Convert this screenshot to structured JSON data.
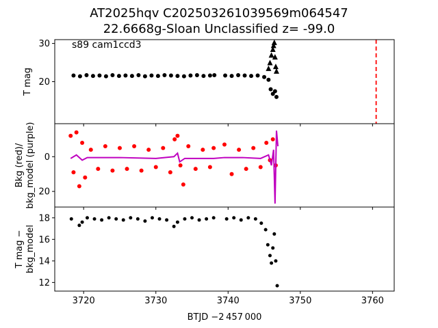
{
  "title": {
    "line1": "AT2025hqv  C202503261039569m064547",
    "line2": "22.6668g-Sloan Unclassified z= -99.0"
  },
  "colors": {
    "bkg": "#ff0000",
    "model": "#bf00bf",
    "points": "#000000",
    "marker": "#ff0000"
  },
  "chart_data": [
    {
      "type": "scatter",
      "panel": "top",
      "annotation": "s89 cam1ccd3",
      "xlabel": "",
      "ylabel": "T mag",
      "xlim": [
        3716.0,
        3763.0
      ],
      "ylim": [
        31.0,
        9.0
      ],
      "y_inverted": true,
      "yticks": [
        20,
        30
      ],
      "marker_line_x": 3760.5,
      "series": [
        {
          "kind": "detections",
          "x": [
            3718.6,
            3719.5,
            3720.4,
            3721.3,
            3722.2,
            3723.1,
            3724.0,
            3724.9,
            3725.8,
            3726.7,
            3727.6,
            3728.5,
            3729.4,
            3730.3,
            3731.2,
            3732.1,
            3733.0,
            3733.9,
            3734.8,
            3735.7,
            3736.6,
            3737.5,
            3738.1,
            3739.6,
            3740.5,
            3741.4,
            3742.3,
            3743.2,
            3744.1,
            3745.0,
            3745.6,
            3745.9,
            3746.2,
            3746.5,
            3746.7
          ],
          "y": [
            21.6,
            21.4,
            21.7,
            21.5,
            21.6,
            21.4,
            21.7,
            21.5,
            21.6,
            21.5,
            21.7,
            21.4,
            21.6,
            21.5,
            21.7,
            21.6,
            21.5,
            21.4,
            21.6,
            21.7,
            21.5,
            21.6,
            21.7,
            21.6,
            21.5,
            21.7,
            21.6,
            21.5,
            21.6,
            21.2,
            20.5,
            18.0,
            16.8,
            17.5,
            16.0
          ]
        },
        {
          "kind": "upper-limits",
          "x": [
            3745.6,
            3745.8,
            3746.0,
            3746.2,
            3746.3,
            3746.4,
            3746.5,
            3746.6,
            3746.7
          ],
          "y": [
            23.5,
            25.0,
            27.0,
            28.5,
            29.5,
            30.3,
            26.5,
            24.0,
            22.8
          ]
        }
      ]
    },
    {
      "type": "line",
      "panel": "middle",
      "xlabel": "",
      "ylabel": "Bkg (red)/\nbkg_model (purple)",
      "xlim": [
        3716.0,
        3763.0
      ],
      "ylim": [
        -19.0,
        29.0
      ],
      "yticks": [
        0,
        20
      ],
      "series": [
        {
          "name": "Bkg",
          "x": [
            3718.2,
            3718.6,
            3719.0,
            3719.4,
            3719.8,
            3720.2,
            3721.0,
            3722.0,
            3723.0,
            3724.0,
            3725.0,
            3726.0,
            3727.0,
            3728.0,
            3729.0,
            3730.0,
            3731.0,
            3732.0,
            3732.6,
            3733.0,
            3733.4,
            3733.8,
            3734.5,
            3735.5,
            3736.5,
            3737.5,
            3738.0,
            3739.5,
            3740.5,
            3741.5,
            3742.5,
            3743.5,
            3744.5,
            3745.3,
            3745.8,
            3746.2,
            3746.6
          ],
          "y": [
            -12,
            9,
            -14,
            17,
            -8,
            12,
            -4,
            7,
            -6,
            8,
            -5,
            7,
            -6,
            8,
            -4,
            6,
            -5,
            9,
            -10,
            -12,
            5,
            16,
            -6,
            7,
            -4,
            6,
            -5,
            -7,
            10,
            -4,
            7,
            -5,
            6,
            -8,
            2,
            -10,
            5
          ]
        },
        {
          "name": "bkg_model",
          "x": [
            3718.2,
            3719.0,
            3719.8,
            3720.5,
            3725.0,
            3730.0,
            3732.5,
            3733.0,
            3733.3,
            3734.0,
            3737.0,
            3738.0,
            3739.5,
            3742.0,
            3744.5,
            3745.6,
            3746.0,
            3746.3,
            3746.5,
            3746.7,
            3746.9
          ],
          "y": [
            1,
            -1,
            2,
            0.5,
            0.5,
            1,
            0,
            -2,
            3,
            1,
            1,
            1,
            0.5,
            0.5,
            1,
            -1,
            5,
            -4,
            27,
            -15,
            -6
          ]
        }
      ]
    },
    {
      "type": "scatter",
      "panel": "bottom",
      "xlabel": "BTJD −2 457 000",
      "ylabel": "T mag −\nbkg_model",
      "xlim": [
        3716.0,
        3763.0
      ],
      "ylim": [
        19.0,
        11.2
      ],
      "y_inverted": true,
      "yticks": [
        12,
        14,
        16,
        18
      ],
      "xticks": [
        3720,
        3730,
        3740,
        3750,
        3760
      ],
      "series": [
        {
          "name": "T mag − bkg_model",
          "x": [
            3718.3,
            3719.4,
            3719.8,
            3720.5,
            3721.5,
            3722.5,
            3723.5,
            3724.5,
            3725.5,
            3726.5,
            3727.5,
            3728.5,
            3729.5,
            3730.5,
            3731.5,
            3732.5,
            3733.0,
            3734.0,
            3735.0,
            3736.0,
            3737.0,
            3738.0,
            3739.8,
            3740.8,
            3741.8,
            3742.8,
            3743.8,
            3744.6,
            3745.2,
            3745.5,
            3745.8,
            3746.0,
            3746.2,
            3746.4,
            3746.6,
            3746.8
          ],
          "y": [
            17.9,
            17.3,
            17.6,
            18.0,
            17.9,
            17.8,
            18.0,
            17.9,
            17.8,
            18.0,
            17.9,
            17.7,
            18.0,
            17.9,
            17.8,
            17.2,
            17.6,
            17.9,
            18.0,
            17.8,
            17.9,
            18.0,
            17.9,
            18.0,
            17.8,
            18.0,
            17.9,
            17.5,
            16.9,
            15.5,
            14.5,
            13.8,
            15.2,
            16.5,
            14.0,
            11.7
          ]
        }
      ]
    }
  ]
}
